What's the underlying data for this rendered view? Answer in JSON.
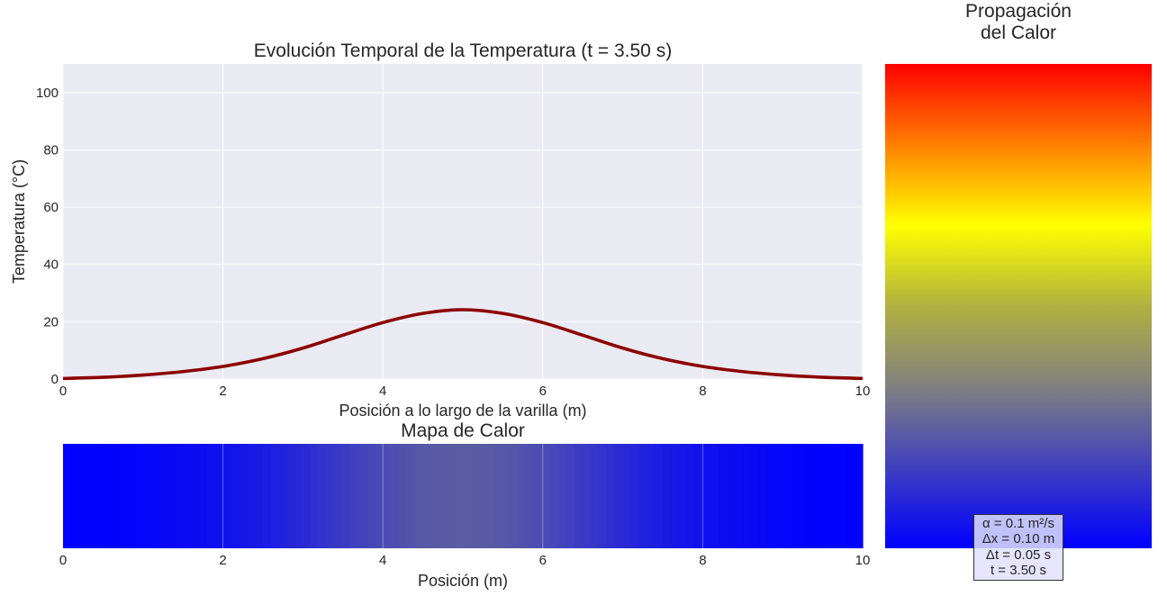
{
  "colors": {
    "axes_bg": "#eaeaf2",
    "grid": "#ffffff",
    "line": "#8b0000",
    "cold": "#0000ff",
    "mid": "#808080",
    "warm": "#ffff00",
    "hot": "#ff0000"
  },
  "chart_data": [
    {
      "type": "line",
      "title": "Evolución Temporal de la Temperatura (t = 3.50 s)",
      "xlabel": "Posición a lo largo de la varilla (m)",
      "ylabel": "Temperatura (°C)",
      "xlim": [
        0,
        10
      ],
      "ylim": [
        0,
        110
      ],
      "xticks": [
        0,
        2,
        4,
        6,
        8,
        10
      ],
      "yticks": [
        0,
        20,
        40,
        60,
        80,
        100
      ],
      "grid": true,
      "series": [
        {
          "x": [
            0,
            0.5,
            1,
            1.5,
            2,
            2.5,
            3,
            3.5,
            4,
            4.5,
            5,
            5.5,
            6,
            6.5,
            7,
            7.5,
            8,
            8.5,
            9,
            9.5,
            10
          ],
          "values": [
            0.2,
            0.6,
            1.4,
            2.6,
            4.4,
            7.1,
            10.8,
            15.3,
            19.7,
            22.9,
            24.2,
            22.9,
            19.7,
            15.3,
            10.8,
            7.1,
            4.4,
            2.6,
            1.4,
            0.6,
            0.2
          ]
        }
      ]
    },
    {
      "type": "heatmap",
      "title": "Mapa de Calor",
      "xlabel": "Posición (m)",
      "xlim": [
        0,
        10
      ],
      "xticks": [
        0,
        2,
        4,
        6,
        8,
        10
      ],
      "colormap": [
        "#0000ff",
        "#808080",
        "#ffff00",
        "#ff0000"
      ],
      "value_range": [
        0,
        100
      ]
    },
    {
      "type": "heatmap",
      "title": "Propagación\ndel Calor",
      "title_lines": [
        "Propagación",
        "del Calor"
      ],
      "colormap": [
        "#0000ff",
        "#808080",
        "#ffff00",
        "#ff0000"
      ],
      "annotation": [
        "α = 0.1 m²/s",
        "Δx = 0.10 m",
        "Δt = 0.05 s",
        "t = 3.50 s"
      ]
    }
  ]
}
